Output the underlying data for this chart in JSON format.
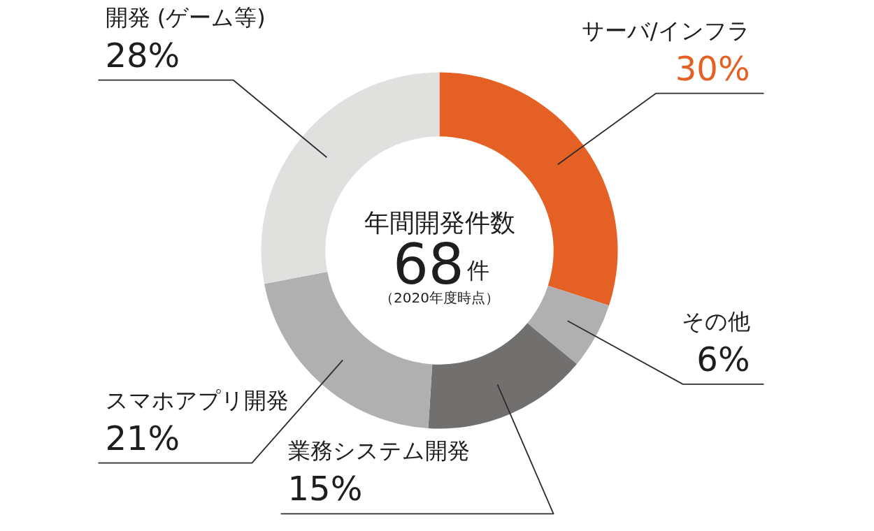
{
  "chart_data": {
    "type": "donut",
    "title": "年間開発件数",
    "annotations": [
      "68件",
      "（2020年度時点）"
    ],
    "categories": [
      "サーバ/インフラ",
      "その他",
      "業務システム開発",
      "スマホアプリ開発",
      "開発 (ゲーム等)"
    ],
    "values": [
      30,
      6,
      15,
      21,
      28
    ],
    "colors": [
      "#e46025",
      "#b0b0b0",
      "#72706e",
      "#b0b0b0",
      "#e0e0df"
    ],
    "value_labels": [
      "30%",
      "6%",
      "15%",
      "21%",
      "28%"
    ]
  }
}
